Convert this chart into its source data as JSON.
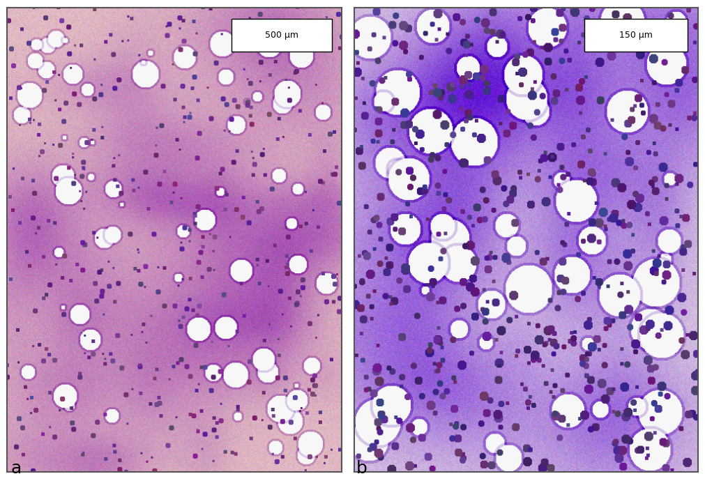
{
  "figure_width": 10.11,
  "figure_height": 7.13,
  "dpi": 100,
  "background_color": "#ffffff",
  "panel_a": {
    "label": "a",
    "scalebar_text": "500 μm",
    "bg_r": 0.88,
    "bg_g": 0.72,
    "bg_b": 0.76
  },
  "panel_b": {
    "label": "b",
    "scalebar_text": "150 μm",
    "bg_r": 0.84,
    "bg_g": 0.76,
    "bg_b": 0.88
  },
  "border_color": "#555555",
  "scalebar_text_color": "#000000",
  "scalebar_fontsize": 9,
  "label_color": "#000000",
  "label_fontsize": 18
}
